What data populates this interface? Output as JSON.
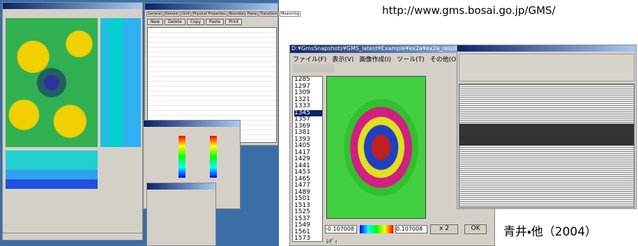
{
  "header": {
    "url": "http://www.gms.bosai.go.jp/GMS/"
  },
  "caption": "青井・他（2004）",
  "editor": {
    "tabs": [
      "General",
      "Domain",
      "Grid",
      "Physical Properties",
      "Boundary Plane",
      "Transform",
      "Measuring"
    ],
    "buttons": [
      "New",
      "Delete",
      "Copy",
      "Paste",
      "Print"
    ]
  },
  "viewer": {
    "title": "D:¥GmsSnapshots¥GMS_latest¥Example¥ex2a¥ex2a_results¥vy2d",
    "menu": [
      "ファイル(F)",
      "表示(V)",
      "画像作成(I)",
      "ツール(T)",
      "その他(O)"
    ],
    "frames": [
      1285,
      1297,
      1309,
      1321,
      1333,
      1345,
      1357,
      1369,
      1381,
      1393,
      1405,
      1417,
      1429,
      1441,
      1453,
      1465,
      1477,
      1489,
      1501,
      1513,
      1525,
      1537,
      1549,
      1561,
      1573
    ],
    "color_min": "-0.107008",
    "color_max": "0.107008",
    "zoom_button": "x 2",
    "ok_button": "OK",
    "status": "ﾚﾃﾞｨ"
  }
}
